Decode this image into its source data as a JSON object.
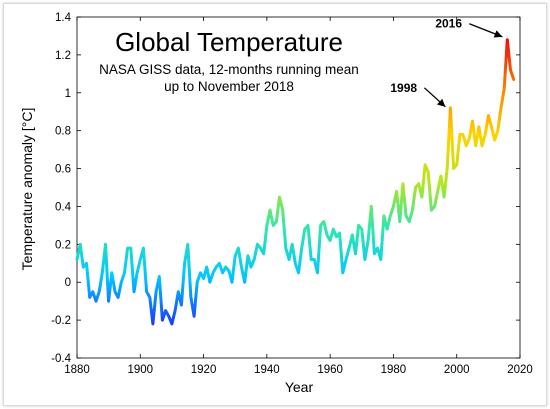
{
  "chart_data": {
    "type": "line",
    "title": "Global Temperature",
    "subtitle_lines": [
      "NASA GISS data, 12-months running mean",
      "up to November 2018"
    ],
    "xlabel": "Year",
    "ylabel": "Temperature anomaly [°C]",
    "xlim": [
      1880,
      2020
    ],
    "ylim": [
      -0.4,
      1.4
    ],
    "xticks": [
      1880,
      1900,
      1920,
      1940,
      1960,
      1980,
      2000,
      2020
    ],
    "yticks": [
      -0.4,
      -0.2,
      0,
      0.2,
      0.4,
      0.6,
      0.8,
      1,
      1.2,
      1.4
    ],
    "grid": false,
    "color_scale": [
      "#1a3cff",
      "#00c8ff",
      "#2ee6b0",
      "#b5e61d",
      "#ffd200",
      "#ff7f00",
      "#e81010"
    ],
    "annotations": [
      {
        "text": "1998",
        "x": 1998,
        "y": 0.91
      },
      {
        "text": "2016",
        "x": 2016,
        "y": 1.28
      }
    ],
    "series": [
      {
        "x": [
          1880,
          1881,
          1882,
          1883,
          1884,
          1885,
          1886,
          1887,
          1888,
          1889,
          1890,
          1891,
          1892,
          1893,
          1894,
          1895,
          1896,
          1897,
          1898,
          1899,
          1900,
          1901,
          1902,
          1903,
          1904,
          1905,
          1906,
          1907,
          1908,
          1909,
          1910,
          1911,
          1912,
          1913,
          1914,
          1915,
          1916,
          1917,
          1918,
          1919,
          1920,
          1921,
          1922,
          1923,
          1924,
          1925,
          1926,
          1927,
          1928,
          1929,
          1930,
          1931,
          1932,
          1933,
          1934,
          1935,
          1936,
          1937,
          1938,
          1939,
          1940,
          1941,
          1942,
          1943,
          1944,
          1945,
          1946,
          1947,
          1948,
          1949,
          1950,
          1951,
          1952,
          1953,
          1954,
          1955,
          1956,
          1957,
          1958,
          1959,
          1960,
          1961,
          1962,
          1963,
          1964,
          1965,
          1966,
          1967,
          1968,
          1969,
          1970,
          1971,
          1972,
          1973,
          1974,
          1975,
          1976,
          1977,
          1978,
          1979,
          1980,
          1981,
          1982,
          1983,
          1984,
          1985,
          1986,
          1987,
          1988,
          1989,
          1990,
          1991,
          1992,
          1993,
          1994,
          1995,
          1996,
          1997,
          1998,
          1999,
          2000,
          2001,
          2002,
          2003,
          2004,
          2005,
          2006,
          2007,
          2008,
          2009,
          2010,
          2011,
          2012,
          2013,
          2014,
          2015,
          2016,
          2017,
          2018
        ],
        "y": [
          0.12,
          0.2,
          0.08,
          0.1,
          -0.08,
          -0.05,
          -0.1,
          -0.05,
          0.05,
          0.2,
          -0.1,
          0.05,
          -0.05,
          -0.08,
          0.0,
          0.05,
          0.18,
          0.18,
          -0.05,
          0.05,
          0.12,
          0.18,
          -0.05,
          -0.08,
          -0.22,
          -0.05,
          0.03,
          -0.2,
          -0.15,
          -0.18,
          -0.22,
          -0.15,
          -0.05,
          -0.12,
          0.1,
          0.2,
          -0.08,
          -0.18,
          0.0,
          0.05,
          0.02,
          0.08,
          0.0,
          0.05,
          0.08,
          0.1,
          0.05,
          0.08,
          0.06,
          0.0,
          0.14,
          0.18,
          0.08,
          0.0,
          0.14,
          0.08,
          0.12,
          0.2,
          0.18,
          0.15,
          0.3,
          0.38,
          0.3,
          0.32,
          0.45,
          0.38,
          0.18,
          0.12,
          0.2,
          0.1,
          0.05,
          0.18,
          0.28,
          0.3,
          0.12,
          0.12,
          0.05,
          0.3,
          0.32,
          0.25,
          0.22,
          0.28,
          0.24,
          0.26,
          0.05,
          0.12,
          0.18,
          0.25,
          0.15,
          0.3,
          0.28,
          0.12,
          0.22,
          0.4,
          0.15,
          0.18,
          0.12,
          0.35,
          0.28,
          0.35,
          0.4,
          0.48,
          0.32,
          0.52,
          0.35,
          0.32,
          0.38,
          0.5,
          0.52,
          0.45,
          0.62,
          0.58,
          0.38,
          0.4,
          0.48,
          0.56,
          0.45,
          0.6,
          0.92,
          0.6,
          0.62,
          0.78,
          0.78,
          0.72,
          0.76,
          0.85,
          0.72,
          0.82,
          0.72,
          0.78,
          0.88,
          0.82,
          0.75,
          0.8,
          0.92,
          1.02,
          1.28,
          1.12,
          1.07
        ]
      }
    ]
  }
}
